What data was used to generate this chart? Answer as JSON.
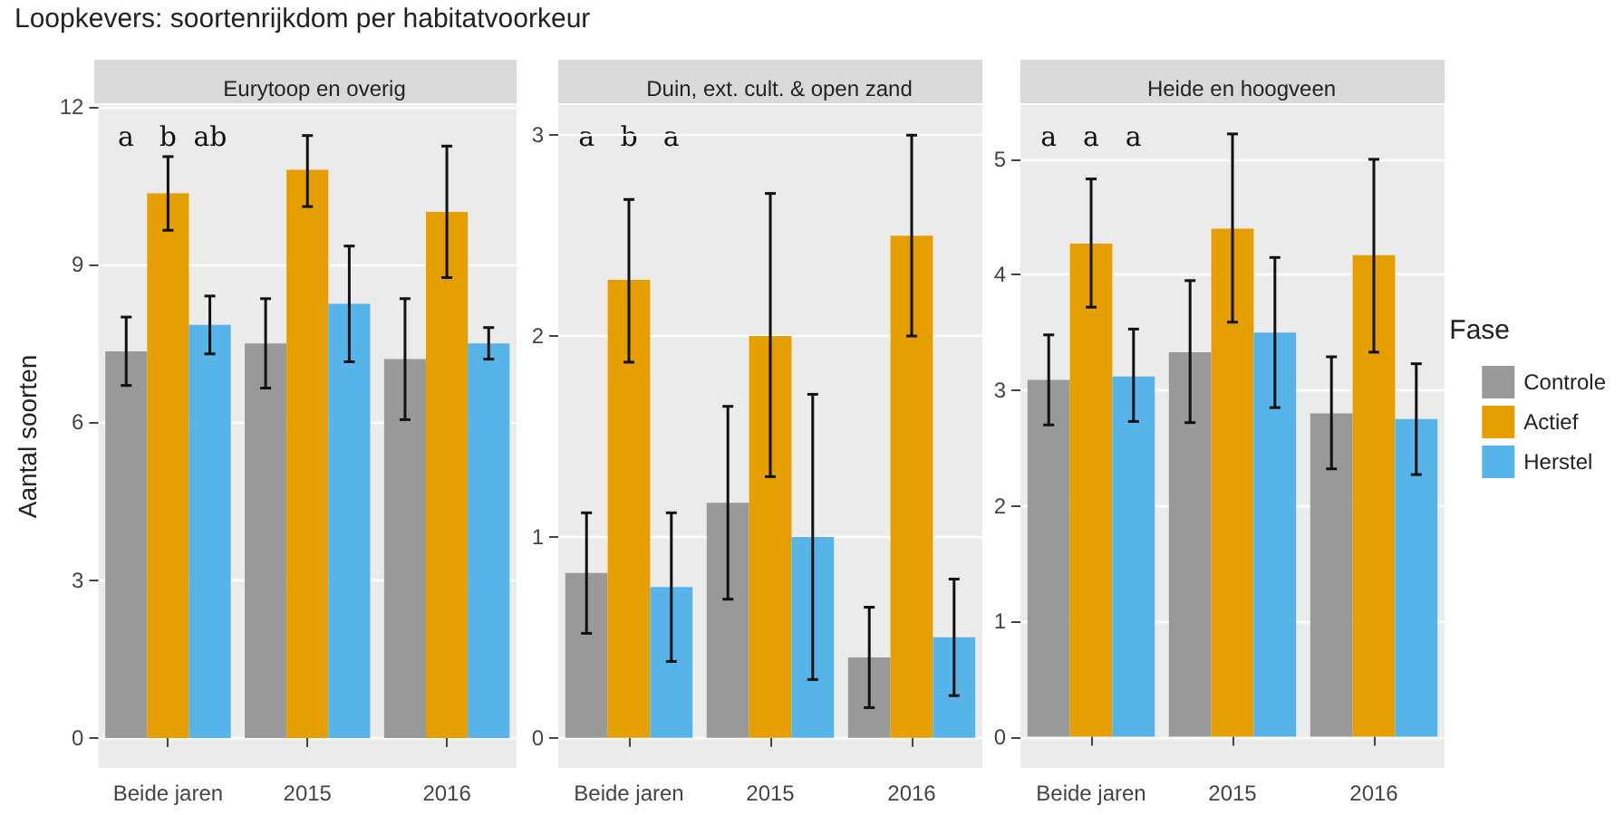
{
  "chart_data": [
    {
      "type": "bar",
      "title": "Loopkevers: soortenrijkdom per habitatvoorkeur",
      "subtitle": "Eurytoop en overig",
      "ylabel": "Aantal soorten",
      "categories": [
        "Beide jaren",
        "2015",
        "2016"
      ],
      "ylim": [
        -0.57,
        12.03
      ],
      "yticks": [
        0,
        3,
        6,
        9,
        12
      ],
      "grid": true,
      "legend": false,
      "annotations": [
        "a",
        "b",
        "ab"
      ],
      "series": [
        {
          "color": "#999999",
          "values": [
            7.35,
            7.5,
            7.2
          ],
          "errors": [
            [
              6.7,
              8.0
            ],
            [
              6.65,
              8.35
            ],
            [
              6.05,
              8.35
            ]
          ]
        },
        {
          "color": "#e69f00",
          "values": [
            10.35,
            10.8,
            10.0
          ],
          "errors": [
            [
              9.65,
              11.05
            ],
            [
              10.1,
              11.45
            ],
            [
              8.75,
              11.25
            ]
          ]
        },
        {
          "color": "#56b4e9",
          "values": [
            7.85,
            8.25,
            7.5
          ],
          "errors": [
            [
              7.3,
              8.4
            ],
            [
              7.15,
              9.35
            ],
            [
              7.2,
              7.8
            ]
          ]
        }
      ]
    },
    {
      "type": "bar",
      "subtitle": "Duin, ext. cult. & open zand",
      "categories": [
        "Beide jaren",
        "2015",
        "2016"
      ],
      "ylim": [
        -0.15,
        3.15
      ],
      "yticks": [
        0,
        1,
        2,
        3
      ],
      "grid": true,
      "legend": false,
      "annotations": [
        "a",
        "b",
        "a"
      ],
      "series": [
        {
          "color": "#999999",
          "values": [
            0.82,
            1.17,
            0.4
          ],
          "errors": [
            [
              0.52,
              1.12
            ],
            [
              0.69,
              1.65
            ],
            [
              0.15,
              0.65
            ]
          ]
        },
        {
          "color": "#e69f00",
          "values": [
            2.28,
            2.0,
            2.5
          ],
          "errors": [
            [
              1.87,
              2.68
            ],
            [
              1.3,
              2.71
            ],
            [
              2.0,
              3.0
            ]
          ]
        },
        {
          "color": "#56b4e9",
          "values": [
            0.75,
            1.0,
            0.5
          ],
          "errors": [
            [
              0.38,
              1.12
            ],
            [
              0.29,
              1.71
            ],
            [
              0.21,
              0.79
            ]
          ]
        }
      ]
    },
    {
      "type": "bar",
      "subtitle": "Heide en hoogveen",
      "categories": [
        "Beide jaren",
        "2015",
        "2016"
      ],
      "ylim": [
        -0.27,
        5.47
      ],
      "yticks": [
        0,
        1,
        2,
        3,
        4,
        5
      ],
      "grid": true,
      "legend": "right",
      "legend_title": "Fase",
      "annotations": [
        "a",
        "a",
        "a"
      ],
      "series": [
        {
          "name": "Controle",
          "color": "#999999",
          "values": [
            3.09,
            3.33,
            2.8
          ],
          "errors": [
            [
              2.7,
              3.48
            ],
            [
              2.72,
              3.95
            ],
            [
              2.32,
              3.29
            ]
          ]
        },
        {
          "name": "Actief",
          "color": "#e69f00",
          "values": [
            4.27,
            4.4,
            4.17
          ],
          "errors": [
            [
              3.72,
              4.83
            ],
            [
              3.59,
              5.22
            ],
            [
              3.33,
              5.0
            ]
          ]
        },
        {
          "name": "Herstel",
          "color": "#56b4e9",
          "values": [
            3.12,
            3.5,
            2.75
          ],
          "errors": [
            [
              2.73,
              3.53
            ],
            [
              2.85,
              4.15
            ],
            [
              2.27,
              3.23
            ]
          ]
        }
      ]
    }
  ]
}
